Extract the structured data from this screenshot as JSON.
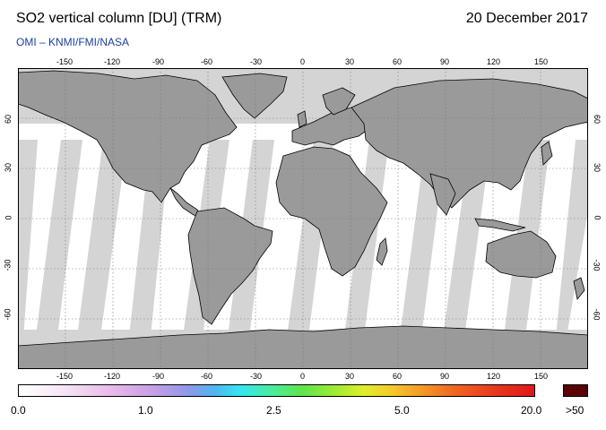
{
  "header": {
    "title": "SO2 vertical column [DU] (TRM)",
    "date": "20 December 2017",
    "credit": "OMI  –  KNMI/FMI/NASA"
  },
  "map": {
    "lon_ticks": [
      "-150",
      "-120",
      "-90",
      "-60",
      "-30",
      "0",
      "30",
      "60",
      "90",
      "120",
      "150"
    ],
    "lat_ticks": [
      "60",
      "30",
      "0",
      "-30",
      "-60"
    ],
    "colors": {
      "land": "#9a9a9a",
      "no_data": "#d4d4d4",
      "ocean": "#ffffff"
    }
  },
  "colorbar": {
    "labels": [
      "0.0",
      "1.0",
      "2.5",
      "5.0",
      "20.0"
    ],
    "overflow_label": ">50",
    "overflow_color": "#5a0006"
  }
}
